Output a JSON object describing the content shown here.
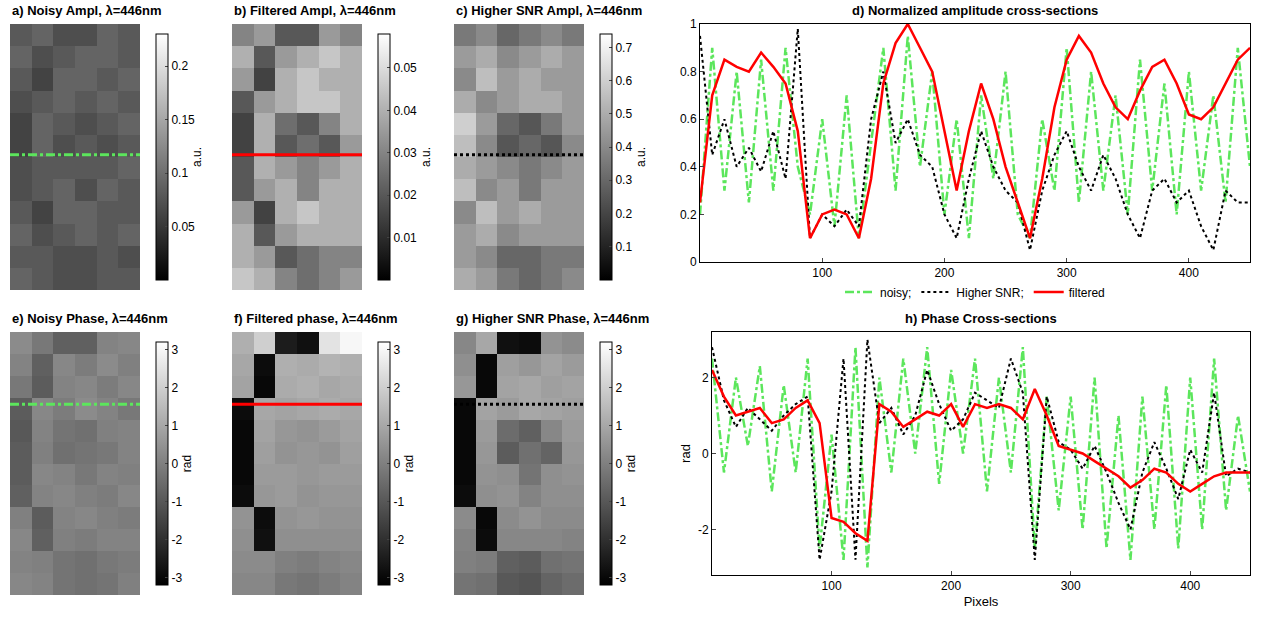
{
  "chart_data": [
    {
      "type": "heatmap",
      "title": "a) Noisy Ampl, λ=446nm",
      "tick_labels": false,
      "colorbar_range": [
        0,
        0.23
      ],
      "colorbar_ticks": [
        0.05,
        0.1,
        0.15,
        0.2
      ],
      "colorbar_title": "a.u.",
      "cross_section": {
        "row": 5.4,
        "color": "#5ce65c",
        "line_style": "dashdot"
      },
      "cells": [
        [
          0.08,
          0.09,
          0.07,
          0.07,
          0.09,
          0.08
        ],
        [
          0.09,
          0.07,
          0.08,
          0.09,
          0.09,
          0.08
        ],
        [
          0.08,
          0.06,
          0.09,
          0.09,
          0.08,
          0.09
        ],
        [
          0.07,
          0.08,
          0.09,
          0.08,
          0.09,
          0.08
        ],
        [
          0.06,
          0.09,
          0.08,
          0.07,
          0.08,
          0.09
        ],
        [
          0.06,
          0.09,
          0.07,
          0.08,
          0.07,
          0.08
        ],
        [
          0.07,
          0.08,
          0.08,
          0.08,
          0.08,
          0.09
        ],
        [
          0.07,
          0.08,
          0.09,
          0.07,
          0.09,
          0.08
        ],
        [
          0.08,
          0.06,
          0.09,
          0.09,
          0.08,
          0.08
        ],
        [
          0.09,
          0.07,
          0.08,
          0.09,
          0.08,
          0.09
        ],
        [
          0.08,
          0.08,
          0.07,
          0.07,
          0.08,
          0.07
        ],
        [
          0.09,
          0.08,
          0.07,
          0.07,
          0.08,
          0.08
        ]
      ]
    },
    {
      "type": "heatmap",
      "title": "b) Filtered Ampl, λ=446nm",
      "tick_labels": false,
      "colorbar_range": [
        0,
        0.058
      ],
      "colorbar_ticks": [
        0.01,
        0.02,
        0.03,
        0.04,
        0.05
      ],
      "colorbar_title": "a.u.",
      "cross_section": {
        "row": 5.4,
        "color": "#ff0000",
        "line_style": "solid"
      },
      "cells": [
        [
          0.03,
          0.035,
          0.02,
          0.02,
          0.035,
          0.03
        ],
        [
          0.04,
          0.02,
          0.035,
          0.04,
          0.045,
          0.04
        ],
        [
          0.035,
          0.015,
          0.04,
          0.045,
          0.04,
          0.04
        ],
        [
          0.02,
          0.035,
          0.04,
          0.045,
          0.045,
          0.04
        ],
        [
          0.015,
          0.04,
          0.025,
          0.02,
          0.03,
          0.04
        ],
        [
          0.015,
          0.04,
          0.02,
          0.025,
          0.02,
          0.035
        ],
        [
          0.02,
          0.04,
          0.035,
          0.03,
          0.035,
          0.04
        ],
        [
          0.02,
          0.035,
          0.04,
          0.03,
          0.04,
          0.04
        ],
        [
          0.035,
          0.015,
          0.04,
          0.045,
          0.04,
          0.04
        ],
        [
          0.04,
          0.02,
          0.035,
          0.04,
          0.04,
          0.04
        ],
        [
          0.04,
          0.035,
          0.02,
          0.025,
          0.03,
          0.03
        ],
        [
          0.045,
          0.04,
          0.03,
          0.025,
          0.03,
          0.035
        ]
      ]
    },
    {
      "type": "heatmap",
      "title": "c) Higher SNR Ampl, λ=446nm",
      "tick_labels": false,
      "colorbar_range": [
        0,
        0.74
      ],
      "colorbar_ticks": [
        0.1,
        0.2,
        0.3,
        0.4,
        0.5,
        0.6,
        0.7
      ],
      "colorbar_title": "a.u.",
      "cross_section": {
        "row": 5.4,
        "color": "#000000",
        "line_style": "dotted"
      },
      "cells": [
        [
          0.35,
          0.4,
          0.3,
          0.35,
          0.4,
          0.35
        ],
        [
          0.45,
          0.5,
          0.4,
          0.45,
          0.5,
          0.45
        ],
        [
          0.4,
          0.55,
          0.45,
          0.5,
          0.45,
          0.45
        ],
        [
          0.5,
          0.4,
          0.45,
          0.5,
          0.5,
          0.45
        ],
        [
          0.6,
          0.45,
          0.3,
          0.25,
          0.35,
          0.45
        ],
        [
          0.55,
          0.4,
          0.25,
          0.3,
          0.25,
          0.4
        ],
        [
          0.5,
          0.45,
          0.4,
          0.35,
          0.4,
          0.45
        ],
        [
          0.55,
          0.4,
          0.45,
          0.35,
          0.45,
          0.45
        ],
        [
          0.4,
          0.55,
          0.45,
          0.5,
          0.45,
          0.45
        ],
        [
          0.45,
          0.5,
          0.4,
          0.45,
          0.45,
          0.45
        ],
        [
          0.45,
          0.4,
          0.3,
          0.3,
          0.35,
          0.35
        ],
        [
          0.5,
          0.45,
          0.35,
          0.3,
          0.35,
          0.4
        ]
      ]
    },
    {
      "type": "line",
      "title": "d) Normalized amplitude cross-sections",
      "grid": false,
      "legend": "bottom",
      "xlim": [
        0,
        450
      ],
      "xticks": [
        100,
        200,
        300,
        400
      ],
      "ylim": [
        0,
        1
      ],
      "yticks": [
        0,
        0.2,
        0.4,
        0.6,
        0.8,
        1
      ],
      "x": [
        0,
        10,
        20,
        30,
        40,
        50,
        60,
        70,
        80,
        90,
        100,
        110,
        120,
        130,
        140,
        150,
        160,
        170,
        180,
        190,
        200,
        210,
        220,
        230,
        240,
        250,
        260,
        270,
        280,
        290,
        300,
        310,
        320,
        330,
        340,
        350,
        360,
        370,
        380,
        390,
        400,
        410,
        420,
        430,
        440,
        450
      ],
      "series": [
        {
          "name": "noisy;",
          "color": "#5ce65c",
          "line_style": "dashdot",
          "values": [
            0.2,
            0.9,
            0.3,
            0.8,
            0.25,
            0.85,
            0.3,
            0.9,
            0.4,
            0.2,
            0.6,
            0.15,
            0.7,
            0.1,
            0.5,
            0.9,
            0.3,
            0.95,
            0.4,
            0.8,
            0.2,
            0.6,
            0.1,
            0.7,
            0.35,
            0.8,
            0.2,
            0.1,
            0.6,
            0.3,
            0.9,
            0.25,
            0.8,
            0.3,
            0.7,
            0.2,
            0.85,
            0.3,
            0.75,
            0.2,
            0.8,
            0.3,
            0.7,
            0.25,
            0.9,
            0.4
          ]
        },
        {
          "name": "Higher SNR;",
          "color": "#000000",
          "line_style": "dotted",
          "values": [
            0.95,
            0.45,
            0.6,
            0.4,
            0.48,
            0.38,
            0.55,
            0.35,
            0.98,
            0.1,
            0.2,
            0.15,
            0.22,
            0.15,
            0.6,
            0.8,
            0.5,
            0.6,
            0.45,
            0.4,
            0.2,
            0.1,
            0.35,
            0.55,
            0.4,
            0.3,
            0.25,
            0.05,
            0.3,
            0.45,
            0.55,
            0.4,
            0.3,
            0.45,
            0.35,
            0.2,
            0.1,
            0.3,
            0.35,
            0.25,
            0.3,
            0.15,
            0.05,
            0.3,
            0.25,
            0.25
          ]
        },
        {
          "name": "filtered",
          "color": "#ff0000",
          "line_style": "solid",
          "values": [
            0.25,
            0.7,
            0.85,
            0.82,
            0.8,
            0.88,
            0.82,
            0.75,
            0.55,
            0.1,
            0.2,
            0.22,
            0.2,
            0.1,
            0.35,
            0.75,
            0.92,
            1.0,
            0.9,
            0.8,
            0.55,
            0.3,
            0.55,
            0.75,
            0.6,
            0.4,
            0.25,
            0.1,
            0.35,
            0.65,
            0.85,
            0.95,
            0.88,
            0.75,
            0.65,
            0.6,
            0.72,
            0.82,
            0.85,
            0.75,
            0.62,
            0.6,
            0.65,
            0.75,
            0.85,
            0.9
          ]
        }
      ]
    },
    {
      "type": "heatmap",
      "title": "e) Noisy Phase, λ=446nm",
      "tick_labels": false,
      "colorbar_range": [
        -3.2,
        3.2
      ],
      "colorbar_ticks": [
        -3,
        -2,
        -1,
        0,
        1,
        2,
        3
      ],
      "colorbar_title": "rad",
      "cross_section": {
        "row": 2.8,
        "color": "#5ce65c",
        "line_style": "dashdot"
      },
      "cells": [
        [
          0.3,
          -0.2,
          -0.8,
          -0.8,
          0.1,
          0.2
        ],
        [
          0.1,
          -0.8,
          0.2,
          -0.1,
          0.3,
          0.0
        ],
        [
          -0.2,
          -0.9,
          0.1,
          0.2,
          -0.1,
          0.2
        ],
        [
          -0.9,
          0.2,
          -0.1,
          0.3,
          0.1,
          -0.2
        ],
        [
          -1.0,
          0.1,
          -0.3,
          -0.4,
          0.0,
          0.1
        ],
        [
          -0.9,
          0.0,
          -0.4,
          -0.3,
          -0.2,
          0.1
        ],
        [
          -0.9,
          0.2,
          0.1,
          -0.2,
          0.1,
          0.0
        ],
        [
          -0.8,
          0.1,
          0.2,
          0.0,
          -0.1,
          0.2
        ],
        [
          0.0,
          -0.9,
          0.1,
          0.2,
          0.0,
          -0.1
        ],
        [
          0.2,
          -0.8,
          0.0,
          -0.1,
          0.1,
          0.1
        ],
        [
          0.1,
          0.0,
          -0.3,
          -0.4,
          -0.2,
          -0.1
        ],
        [
          0.2,
          0.1,
          -0.3,
          -0.4,
          -0.3,
          0.0
        ]
      ]
    },
    {
      "type": "heatmap",
      "title": "f) Filtered phase, λ=446nm",
      "tick_labels": false,
      "colorbar_range": [
        -3.2,
        3.2
      ],
      "colorbar_ticks": [
        -3,
        -2,
        -1,
        0,
        1,
        2,
        3
      ],
      "colorbar_title": "rad",
      "cross_section": {
        "row": 2.8,
        "color": "#ff0000",
        "line_style": "solid"
      },
      "cells": [
        [
          1.2,
          2.0,
          -2.5,
          -2.8,
          2.5,
          3.0
        ],
        [
          1.0,
          -2.9,
          1.2,
          1.1,
          1.3,
          1.2
        ],
        [
          0.9,
          -3.0,
          1.1,
          1.2,
          1.0,
          1.1
        ],
        [
          -2.9,
          1.0,
          0.9,
          1.0,
          1.1,
          1.0
        ],
        [
          -3.0,
          0.9,
          0.6,
          0.5,
          0.7,
          0.9
        ],
        [
          -3.0,
          0.8,
          0.5,
          0.6,
          0.5,
          0.8
        ],
        [
          -3.0,
          0.7,
          0.7,
          0.6,
          0.7,
          0.7
        ],
        [
          -2.9,
          0.6,
          0.7,
          0.5,
          0.6,
          0.6
        ],
        [
          0.5,
          -2.9,
          0.5,
          0.6,
          0.5,
          0.5
        ],
        [
          0.4,
          -2.8,
          0.4,
          0.4,
          0.4,
          0.4
        ],
        [
          0.3,
          0.3,
          0.0,
          -0.1,
          0.1,
          0.2
        ],
        [
          0.2,
          0.2,
          -0.2,
          -0.3,
          -0.1,
          0.1
        ]
      ]
    },
    {
      "type": "heatmap",
      "title": "g) Higher SNR Phase, λ=446nm",
      "tick_labels": false,
      "colorbar_range": [
        -3.2,
        3.2
      ],
      "colorbar_ticks": [
        -3,
        -2,
        -1,
        0,
        1,
        2,
        3
      ],
      "colorbar_title": "rad",
      "cross_section": {
        "row": 2.8,
        "color": "#000000",
        "line_style": "dotted"
      },
      "cells": [
        [
          0.2,
          1.0,
          -2.8,
          -2.9,
          0.5,
          0.3
        ],
        [
          0.4,
          -3.0,
          0.8,
          0.6,
          0.9,
          0.7
        ],
        [
          0.6,
          -3.0,
          0.9,
          1.0,
          0.8,
          0.9
        ],
        [
          -3.0,
          0.9,
          0.7,
          1.0,
          0.9,
          0.8
        ],
        [
          -3.0,
          0.7,
          -0.5,
          -0.8,
          0.2,
          0.7
        ],
        [
          -3.0,
          0.6,
          -0.9,
          -0.4,
          -0.7,
          0.6
        ],
        [
          -3.0,
          0.5,
          0.4,
          -0.3,
          0.4,
          0.5
        ],
        [
          -2.9,
          0.4,
          0.5,
          0.1,
          0.4,
          0.4
        ],
        [
          0.3,
          -3.0,
          0.3,
          0.5,
          0.3,
          0.3
        ],
        [
          0.1,
          -2.9,
          0.2,
          0.2,
          0.2,
          0.1
        ],
        [
          0.0,
          -0.1,
          -0.8,
          -0.9,
          -0.4,
          -0.3
        ],
        [
          -0.3,
          -0.4,
          -1.0,
          -1.1,
          -0.7,
          -0.5
        ]
      ]
    },
    {
      "type": "line",
      "title": "h) Phase Cross-sections",
      "grid": false,
      "x_label": "Pixels",
      "y_label": "rad",
      "xlim": [
        0,
        450
      ],
      "xticks": [
        100,
        200,
        300,
        400
      ],
      "ylim": [
        -3.2,
        3.2
      ],
      "yticks": [
        -2,
        0,
        2
      ],
      "x": [
        0,
        10,
        20,
        30,
        40,
        50,
        60,
        70,
        80,
        90,
        100,
        110,
        120,
        130,
        140,
        150,
        160,
        170,
        180,
        190,
        200,
        210,
        220,
        230,
        240,
        250,
        260,
        270,
        280,
        290,
        300,
        310,
        320,
        330,
        340,
        350,
        360,
        370,
        380,
        390,
        400,
        410,
        420,
        430,
        440,
        450
      ],
      "series": [
        {
          "name": "noisy;",
          "color": "#5ce65c",
          "line_style": "dashdot",
          "values": [
            2.5,
            -0.5,
            2.0,
            0.2,
            2.3,
            -1.0,
            1.8,
            -0.5,
            2.5,
            -2.5,
            0.5,
            -2.8,
            2.8,
            -3.0,
            2.0,
            -0.5,
            2.5,
            0.0,
            2.8,
            -0.8,
            2.2,
            0.0,
            2.5,
            -1.0,
            2.0,
            -0.5,
            2.8,
            -2.5,
            1.5,
            -1.5,
            1.5,
            -2.0,
            2.0,
            -2.5,
            1.0,
            -2.8,
            1.5,
            -2.0,
            1.8,
            -2.5,
            2.0,
            -2.0,
            2.5,
            -1.5,
            1.0,
            -1.0
          ]
        },
        {
          "name": "Higher SNR;",
          "color": "#000000",
          "line_style": "dotted",
          "values": [
            2.8,
            1.4,
            0.7,
            1.2,
            0.9,
            0.6,
            1.0,
            1.3,
            1.5,
            -2.8,
            -1.0,
            2.5,
            -2.8,
            3.0,
            0.8,
            1.2,
            0.5,
            1.0,
            2.2,
            1.3,
            0.6,
            0.9,
            1.6,
            1.4,
            1.2,
            2.5,
            1.6,
            -2.8,
            1.5,
            0.3,
            0.1,
            -0.4,
            0.2,
            -0.5,
            -1.3,
            -2.0,
            -0.5,
            0.3,
            -0.4,
            -1.2,
            0.1,
            -0.5,
            1.6,
            -0.6,
            -0.4,
            -0.5
          ]
        },
        {
          "name": "filtered",
          "color": "#ff0000",
          "line_style": "solid",
          "values": [
            2.2,
            1.5,
            1.0,
            1.1,
            1.2,
            0.8,
            0.9,
            1.2,
            1.4,
            0.8,
            -1.7,
            -1.8,
            -2.1,
            -2.3,
            1.3,
            1.1,
            0.7,
            0.9,
            1.1,
            1.0,
            1.3,
            0.7,
            1.3,
            1.2,
            1.3,
            1.2,
            0.9,
            1.7,
            1.0,
            0.2,
            0.1,
            0.0,
            -0.2,
            -0.4,
            -0.6,
            -0.9,
            -0.7,
            -0.4,
            -0.5,
            -0.8,
            -1.0,
            -0.8,
            -0.6,
            -0.5,
            -0.5,
            -0.5
          ]
        }
      ]
    }
  ]
}
